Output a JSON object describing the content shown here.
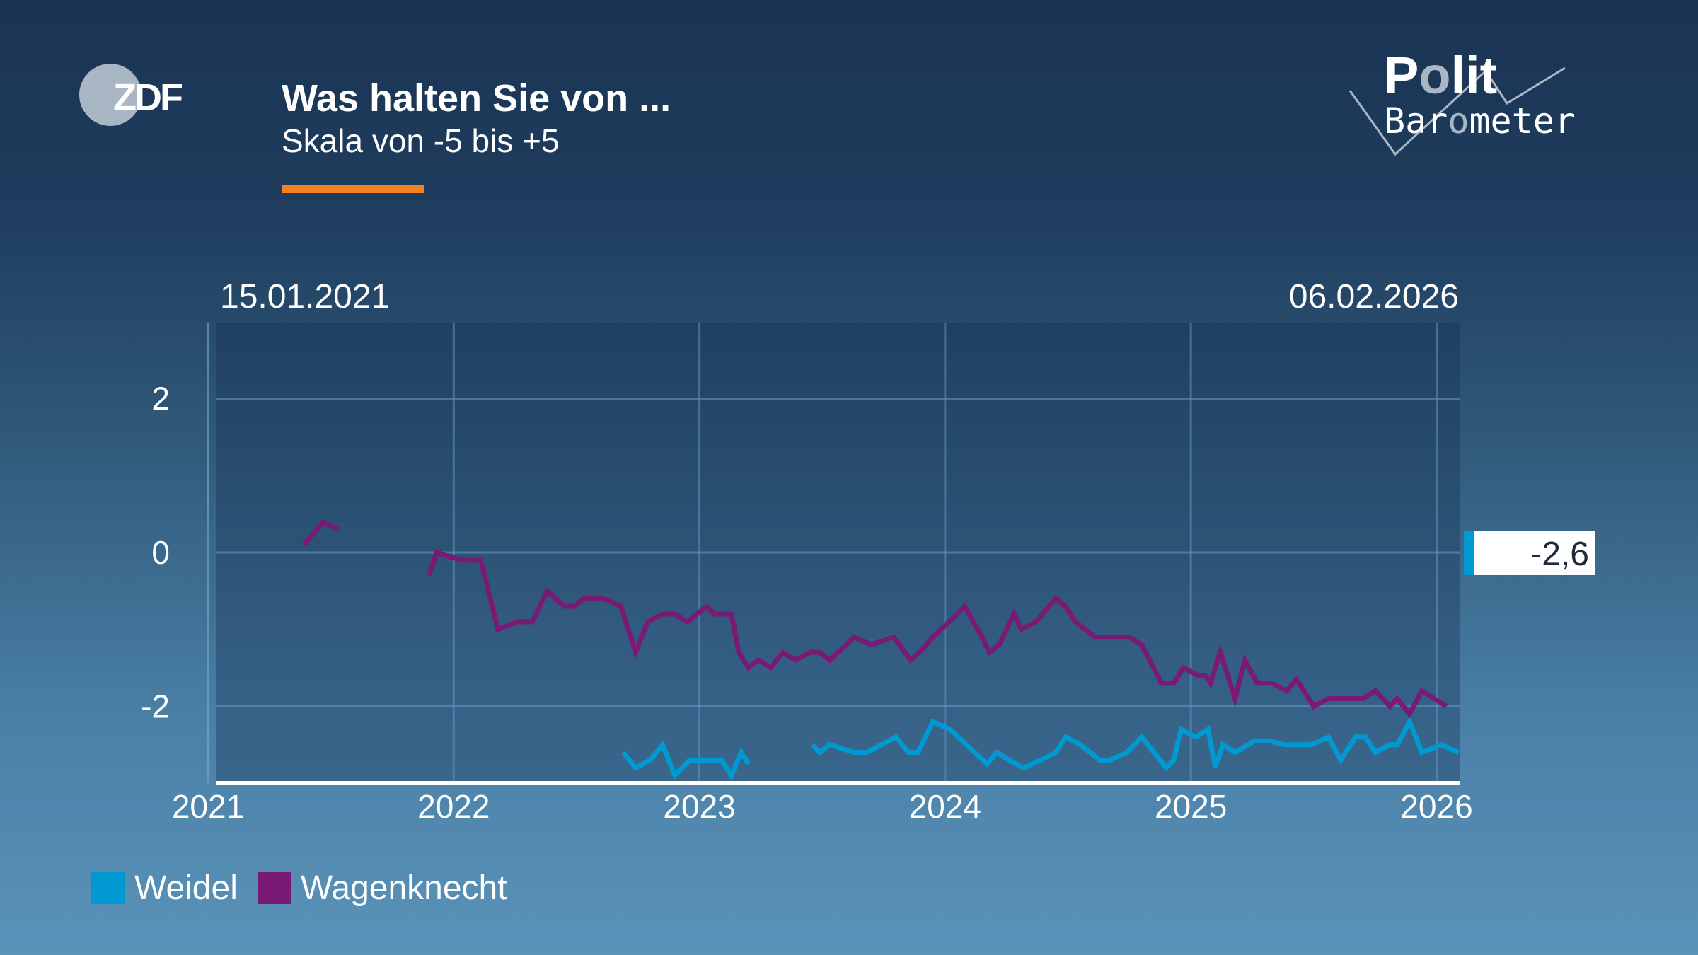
{
  "header": {
    "brand": "ZDF",
    "title": "Was halten Sie von ...",
    "subtitle": "Skala von -5 bis +5",
    "logo_right": "Polit Barometer",
    "accent_color": "#f5821f"
  },
  "chart_data": {
    "type": "line",
    "title": "Was halten Sie von ...",
    "subtitle": "Skala von -5 bis +5",
    "date_start_label": "15.01.2021",
    "date_end_label": "06.02.2026",
    "xlim": [
      2021,
      2026.1
    ],
    "ylim": [
      -3,
      3
    ],
    "grid": true,
    "x_ticks": [
      "2021",
      "2022",
      "2023",
      "2024",
      "2025",
      "2026"
    ],
    "y_ticks": [
      "2",
      "0",
      "-2"
    ],
    "legend_position": "bottom-left",
    "current_value_label": "-2,6",
    "series": [
      {
        "name": "Weidel",
        "color": "#0099d1",
        "segments": [
          [
            [
              2022.69,
              -2.6
            ],
            [
              2022.74,
              -2.8
            ],
            [
              2022.8,
              -2.7
            ],
            [
              2022.85,
              -2.5
            ],
            [
              2022.9,
              -2.9
            ],
            [
              2022.96,
              -2.7
            ],
            [
              2023.05,
              -2.7
            ],
            [
              2023.09,
              -2.7
            ],
            [
              2023.13,
              -2.9
            ],
            [
              2023.17,
              -2.6
            ],
            [
              2023.2,
              -2.75
            ]
          ],
          [
            [
              2023.46,
              -2.5
            ],
            [
              2023.49,
              -2.6
            ],
            [
              2023.53,
              -2.5
            ],
            [
              2023.63,
              -2.6
            ],
            [
              2023.68,
              -2.6
            ],
            [
              2023.8,
              -2.4
            ],
            [
              2023.85,
              -2.6
            ],
            [
              2023.89,
              -2.6
            ],
            [
              2023.95,
              -2.2
            ],
            [
              2024.02,
              -2.3
            ],
            [
              2024.12,
              -2.6
            ],
            [
              2024.17,
              -2.75
            ],
            [
              2024.21,
              -2.6
            ],
            [
              2024.26,
              -2.7
            ],
            [
              2024.32,
              -2.8
            ],
            [
              2024.39,
              -2.7
            ],
            [
              2024.45,
              -2.6
            ],
            [
              2024.49,
              -2.4
            ],
            [
              2024.55,
              -2.5
            ],
            [
              2024.63,
              -2.7
            ],
            [
              2024.67,
              -2.7
            ],
            [
              2024.74,
              -2.6
            ],
            [
              2024.8,
              -2.4
            ],
            [
              2024.9,
              -2.8
            ],
            [
              2024.93,
              -2.7
            ],
            [
              2024.96,
              -2.3
            ],
            [
              2025.02,
              -2.4
            ],
            [
              2025.07,
              -2.3
            ],
            [
              2025.1,
              -2.8
            ],
            [
              2025.13,
              -2.5
            ],
            [
              2025.18,
              -2.6
            ],
            [
              2025.26,
              -2.45
            ],
            [
              2025.32,
              -2.45
            ],
            [
              2025.38,
              -2.5
            ],
            [
              2025.49,
              -2.5
            ],
            [
              2025.56,
              -2.4
            ],
            [
              2025.61,
              -2.7
            ],
            [
              2025.67,
              -2.4
            ],
            [
              2025.71,
              -2.4
            ],
            [
              2025.75,
              -2.6
            ],
            [
              2025.81,
              -2.5
            ],
            [
              2025.84,
              -2.5
            ],
            [
              2025.89,
              -2.2
            ],
            [
              2025.94,
              -2.6
            ],
            [
              2026.02,
              -2.5
            ],
            [
              2026.09,
              -2.6
            ]
          ]
        ]
      },
      {
        "name": "Wagenknecht",
        "color": "#7b1a74",
        "segments": [
          [
            [
              2021.39,
              0.1
            ],
            [
              2021.47,
              0.4
            ],
            [
              2021.53,
              0.3
            ]
          ],
          [
            [
              2021.9,
              -0.3
            ],
            [
              2021.93,
              0.0
            ],
            [
              2022.03,
              -0.1
            ],
            [
              2022.11,
              -0.1
            ],
            [
              2022.18,
              -1.0
            ],
            [
              2022.26,
              -0.9
            ],
            [
              2022.32,
              -0.9
            ],
            [
              2022.38,
              -0.5
            ],
            [
              2022.45,
              -0.7
            ],
            [
              2022.49,
              -0.7
            ],
            [
              2022.53,
              -0.6
            ],
            [
              2022.61,
              -0.6
            ],
            [
              2022.68,
              -0.7
            ],
            [
              2022.74,
              -1.3
            ],
            [
              2022.79,
              -0.9
            ],
            [
              2022.85,
              -0.8
            ],
            [
              2022.9,
              -0.8
            ],
            [
              2022.95,
              -0.9
            ],
            [
              2023.03,
              -0.7
            ],
            [
              2023.06,
              -0.8
            ],
            [
              2023.13,
              -0.8
            ],
            [
              2023.16,
              -1.3
            ],
            [
              2023.2,
              -1.5
            ],
            [
              2023.24,
              -1.4
            ],
            [
              2023.29,
              -1.5
            ],
            [
              2023.34,
              -1.3
            ],
            [
              2023.39,
              -1.4
            ],
            [
              2023.45,
              -1.3
            ],
            [
              2023.49,
              -1.3
            ],
            [
              2023.53,
              -1.4
            ],
            [
              2023.63,
              -1.1
            ],
            [
              2023.7,
              -1.2
            ],
            [
              2023.79,
              -1.1
            ],
            [
              2023.86,
              -1.4
            ],
            [
              2023.91,
              -1.25
            ],
            [
              2023.95,
              -1.1
            ],
            [
              2024.0,
              -0.95
            ],
            [
              2024.08,
              -0.7
            ],
            [
              2024.15,
              -1.1
            ],
            [
              2024.18,
              -1.3
            ],
            [
              2024.22,
              -1.2
            ],
            [
              2024.28,
              -0.8
            ],
            [
              2024.31,
              -1.0
            ],
            [
              2024.37,
              -0.9
            ],
            [
              2024.45,
              -0.6
            ],
            [
              2024.49,
              -0.7
            ],
            [
              2024.53,
              -0.9
            ],
            [
              2024.61,
              -1.1
            ],
            [
              2024.75,
              -1.1
            ],
            [
              2024.8,
              -1.2
            ],
            [
              2024.88,
              -1.7
            ],
            [
              2024.93,
              -1.7
            ],
            [
              2024.97,
              -1.5
            ],
            [
              2025.03,
              -1.6
            ],
            [
              2025.06,
              -1.6
            ],
            [
              2025.08,
              -1.7
            ],
            [
              2025.12,
              -1.3
            ],
            [
              2025.18,
              -1.9
            ],
            [
              2025.22,
              -1.4
            ],
            [
              2025.27,
              -1.7
            ],
            [
              2025.33,
              -1.7
            ],
            [
              2025.39,
              -1.8
            ],
            [
              2025.43,
              -1.65
            ],
            [
              2025.5,
              -2.0
            ],
            [
              2025.56,
              -1.9
            ],
            [
              2025.7,
              -1.9
            ],
            [
              2025.75,
              -1.8
            ],
            [
              2025.81,
              -2.0
            ],
            [
              2025.84,
              -1.9
            ],
            [
              2025.89,
              -2.1
            ],
            [
              2025.94,
              -1.8
            ],
            [
              2026.04,
              -2.0
            ]
          ]
        ]
      }
    ]
  }
}
